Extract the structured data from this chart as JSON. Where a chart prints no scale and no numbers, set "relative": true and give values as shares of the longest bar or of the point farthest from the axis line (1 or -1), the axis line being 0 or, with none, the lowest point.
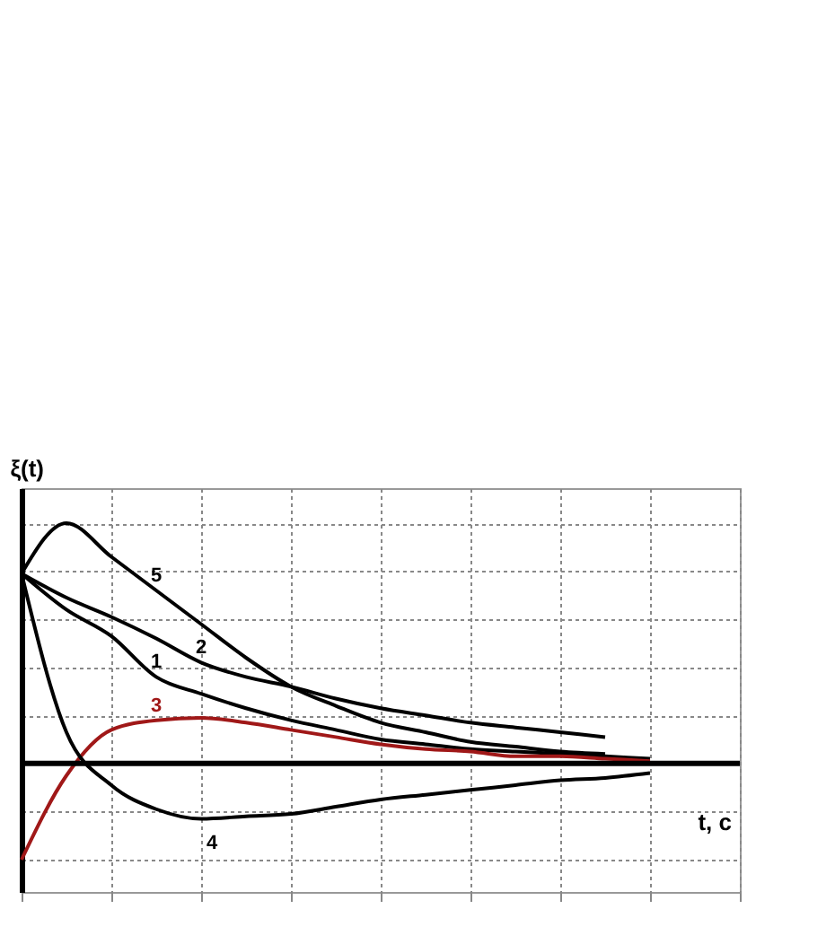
{
  "chart_data": {
    "type": "line",
    "relative": true,
    "xlabel": "t, c",
    "ylabel": "ξ(t)",
    "categories": [
      null,
      null,
      null,
      null,
      null,
      null,
      null,
      null,
      null,
      null,
      null,
      null,
      null,
      null,
      null
    ],
    "grid": true,
    "legend": false,
    "marker": "none",
    "series": [
      {
        "name": "5",
        "color": "#000000",
        "values": [
          0.79,
          1,
          0.86,
          0.72,
          0.58,
          0.44,
          0.32,
          0.24,
          0.17,
          0.13,
          0.09,
          0.07,
          0.05,
          0.04,
          null
        ]
      },
      {
        "name": "2",
        "color": "#000000",
        "values": [
          0.79,
          0.69,
          0.61,
          0.52,
          0.42,
          0.36,
          0.32,
          0.27,
          0.23,
          0.2,
          0.17,
          0.15,
          0.13,
          0.11,
          null
        ]
      },
      {
        "name": "1",
        "color": "#000000",
        "values": [
          0.79,
          0.64,
          0.53,
          0.36,
          0.29,
          0.23,
          0.18,
          0.14,
          0.1,
          0.08,
          0.06,
          0.05,
          0.04,
          0.03,
          0.02
        ]
      },
      {
        "name": "3",
        "color": "#a01818",
        "values": [
          -0.4,
          -0.05,
          0.14,
          0.18,
          0.19,
          0.17,
          0.14,
          0.11,
          0.08,
          0.06,
          0.05,
          0.03,
          0.03,
          0.02,
          0.01
        ]
      },
      {
        "name": "4",
        "color": "#000000",
        "values": [
          0.79,
          0.13,
          -0.09,
          -0.19,
          -0.23,
          -0.22,
          -0.21,
          -0.18,
          -0.15,
          -0.13,
          -0.11,
          -0.09,
          -0.07,
          -0.06,
          -0.04
        ]
      }
    ]
  }
}
